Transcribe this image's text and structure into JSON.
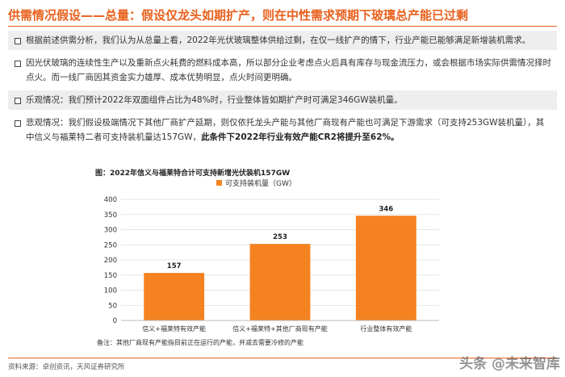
{
  "title": "供需情况假设——总量：假设仅龙头如期扩产，则在中性需求预期下玻璃总产能已过剩",
  "bullets": [
    {
      "text": "根据前述供需分析，我们认为从总量上看，2022年光伏玻璃整体供给过剩，在仅一线扩产的情下，行业产能已能够满足新增装机需求。",
      "bold": "",
      "shaded": true
    },
    {
      "text": "因光伏玻璃的连续性生产以及重新点火耗费的燃料成本高，所以部分企业考虑点火后具有库存与现金流压力，或会根据市场实际供需情况择时点火。而一线厂商因其资金实力雄厚、成本优势明显，点火时间更明确。",
      "bold": "",
      "shaded": false
    },
    {
      "text": "乐观情况：我们预计2022年双面组件占比为48%时，行业整体皆如期扩产时可满足346GW装机量。",
      "bold": "",
      "shaded": true
    },
    {
      "text": "悲观情况：我们假设极端情况下其他厂商扩产延期，则仅依托龙头产能与其他厂商现有产能也可满足下游需求（可支持253GW装机量），其中信义与福莱特二者可支持装机量达157GW，",
      "bold": "此条件下2022年行业有效产能CR2将提升至62%。",
      "shaded": false
    }
  ],
  "chart_title": "图：2022年信义与福莱特合计可支持新增光伏装机157GW",
  "chart_data": {
    "type": "bar",
    "categories": [
      "信义+福莱特有效产能",
      "信义+福莱特+其他厂商现有产能",
      "行业整体有效产能"
    ],
    "series": [
      {
        "name": "可支持装机量（GW）",
        "values": [
          157,
          253,
          346
        ]
      }
    ],
    "ylim": [
      0,
      400
    ],
    "yticks": [
      0,
      50,
      100,
      150,
      200,
      250,
      300,
      350,
      400
    ],
    "grid": true,
    "legend": "top",
    "color": "#f58220",
    "note": "备注：其他厂商现有产能指目前正在运行的产能，并减去需要冷修的产能"
  },
  "source": "资料来源：卓创资讯，天风证券研究所",
  "watermark": "头条 @未来智库",
  "colors": {
    "accent": "#e8601c",
    "bar": "#f58220"
  }
}
